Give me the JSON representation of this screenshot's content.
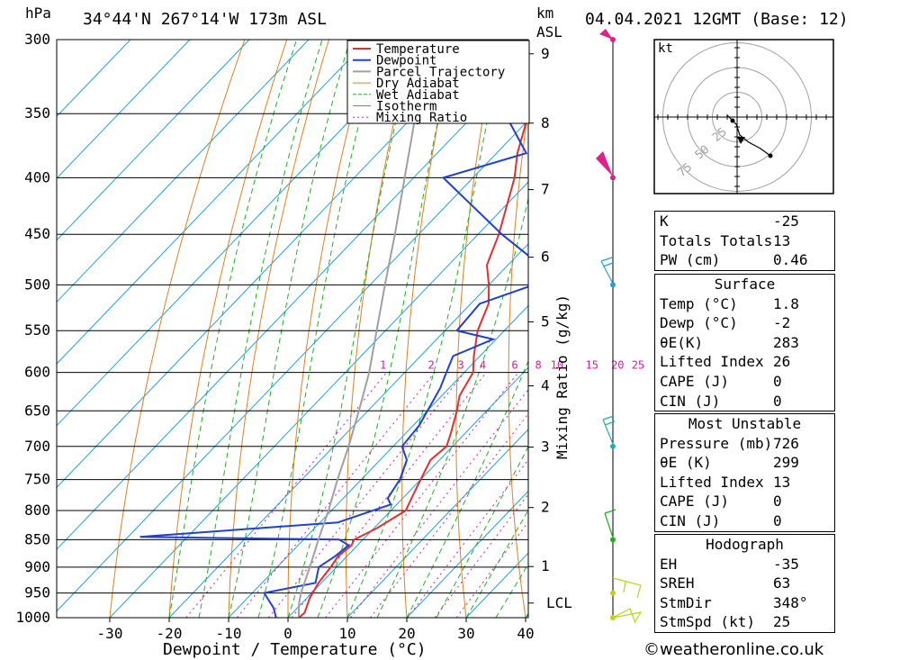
{
  "header": {
    "hpa_label": "hPa",
    "location": "34°44'N  267°14'W  173m  ASL",
    "km_label": "km",
    "asl_label": "ASL",
    "datetime": "04.04.2021  12GMT  (Base: 12)"
  },
  "colors": {
    "temperature": "#e03030",
    "dewpoint": "#2040d0",
    "parcel": "#a0a0a0",
    "dry_adiabat": "#e08020",
    "wet_adiabat": "#20b020",
    "isotherm": "#20a0e0",
    "mixing_ratio": "#d020a0"
  },
  "chart_data": {
    "type": "line",
    "title": "34°44'N 267°14'W 173m ASL",
    "xlabel": "Dewpoint / Temperature (°C)",
    "ylabel": "hPa",
    "secondary_ylabel": "Mixing Ratio (g/kg)",
    "xlim": [
      -40,
      40
    ],
    "ylim": [
      1000,
      300
    ],
    "x_ticks": [
      -30,
      -20,
      -10,
      0,
      10,
      20,
      30,
      40
    ],
    "pressure_levels": [
      300,
      350,
      400,
      450,
      500,
      550,
      600,
      650,
      700,
      750,
      800,
      850,
      900,
      950,
      1000
    ],
    "km_ticks": [
      {
        "km": "9",
        "p": 309
      },
      {
        "km": "8",
        "p": 357
      },
      {
        "km": "7",
        "p": 410
      },
      {
        "km": "6",
        "p": 472
      },
      {
        "km": "5",
        "p": 540
      },
      {
        "km": "4",
        "p": 617
      },
      {
        "km": "3",
        "p": 701
      },
      {
        "km": "2",
        "p": 795
      },
      {
        "km": "1",
        "p": 899
      },
      {
        "km": "LCL",
        "p": 970
      }
    ],
    "mixing_ratio_labels": [
      "1",
      "2",
      "3",
      "4",
      "6",
      "8",
      "10",
      "15",
      "20",
      "25"
    ],
    "legend": [
      "Temperature",
      "Dewpoint",
      "Parcel Trajectory",
      "Dry Adiabat",
      "Wet Adiabat",
      "Isotherm",
      "Mixing Ratio"
    ],
    "legend_position": "top-right",
    "series": [
      {
        "name": "Temperature",
        "points": [
          [
            1000,
            1.8
          ],
          [
            990,
            2.0
          ],
          [
            960,
            0.5
          ],
          [
            930,
            -0.5
          ],
          [
            900,
            -1.0
          ],
          [
            880,
            -1.5
          ],
          [
            860,
            -1.0
          ],
          [
            850,
            -1.5
          ],
          [
            830,
            0.5
          ],
          [
            800,
            2.5
          ],
          [
            780,
            1.5
          ],
          [
            750,
            0.0
          ],
          [
            720,
            -1.5
          ],
          [
            700,
            -1.0
          ],
          [
            680,
            -2.5
          ],
          [
            650,
            -5.0
          ],
          [
            630,
            -7.0
          ],
          [
            600,
            -8.5
          ],
          [
            580,
            -11.0
          ],
          [
            550,
            -14.5
          ],
          [
            520,
            -17.0
          ],
          [
            500,
            -20.0
          ],
          [
            480,
            -23.5
          ],
          [
            470,
            -24.5
          ],
          [
            450,
            -26.5
          ],
          [
            400,
            -33.0
          ],
          [
            380,
            -36.5
          ],
          [
            350,
            -41.0
          ],
          [
            320,
            -45.5
          ],
          [
            300,
            -49.5
          ]
        ]
      },
      {
        "name": "Dewpoint",
        "points": [
          [
            1000,
            -2.0
          ],
          [
            980,
            -4.0
          ],
          [
            950,
            -8.0
          ],
          [
            930,
            -1.0
          ],
          [
            900,
            -3.0
          ],
          [
            880,
            -2.0
          ],
          [
            860,
            -1.5
          ],
          [
            850,
            -4.0
          ],
          [
            845,
            -38.0
          ],
          [
            820,
            -7.0
          ],
          [
            790,
            -1.0
          ],
          [
            780,
            -2.5
          ],
          [
            750,
            -3.5
          ],
          [
            720,
            -5.5
          ],
          [
            700,
            -8.5
          ],
          [
            670,
            -9.0
          ],
          [
            620,
            -11.5
          ],
          [
            600,
            -13.0
          ],
          [
            580,
            -14.5
          ],
          [
            560,
            -10.5
          ],
          [
            550,
            -18.0
          ],
          [
            520,
            -18.5
          ],
          [
            500,
            -12.5
          ],
          [
            480,
            -14.5
          ],
          [
            450,
            -26.0
          ],
          [
            400,
            -45.0
          ],
          [
            380,
            -35.0
          ],
          [
            350,
            -45.0
          ],
          [
            320,
            -55.0
          ],
          [
            310,
            -58.0
          ],
          [
            300,
            -58.0
          ]
        ]
      },
      {
        "name": "Parcel Trajectory",
        "points": [
          [
            1000,
            1.8
          ],
          [
            970,
            -0.5
          ],
          [
            950,
            -1.8
          ],
          [
            900,
            -4.5
          ],
          [
            850,
            -7.5
          ],
          [
            800,
            -10.5
          ],
          [
            750,
            -14.0
          ],
          [
            700,
            -17.5
          ],
          [
            650,
            -21.5
          ],
          [
            600,
            -26.0
          ],
          [
            550,
            -31.5
          ],
          [
            500,
            -37.5
          ],
          [
            450,
            -44.0
          ],
          [
            400,
            -51.5
          ],
          [
            350,
            -60.0
          ],
          [
            300,
            -70.0
          ]
        ]
      }
    ]
  },
  "hodograph": {
    "unit_label": "kt",
    "ring_labels": [
      "25",
      "50",
      "75"
    ]
  },
  "indices": [
    {
      "label": "K",
      "value": "-25"
    },
    {
      "label": "Totals Totals",
      "value": "13"
    },
    {
      "label": "PW (cm)",
      "value": "0.46"
    }
  ],
  "surface": {
    "title": "Surface",
    "rows": [
      {
        "label": "Temp (°C)",
        "value": "1.8"
      },
      {
        "label": "Dewp (°C)",
        "value": "-2"
      },
      {
        "label": "θE(K)",
        "value": "283"
      },
      {
        "label": "Lifted Index",
        "value": "26"
      },
      {
        "label": "CAPE (J)",
        "value": "0"
      },
      {
        "label": "CIN (J)",
        "value": "0"
      }
    ]
  },
  "most_unstable": {
    "title": "Most Unstable",
    "rows": [
      {
        "label": "Pressure (mb)",
        "value": "726"
      },
      {
        "label": "θE (K)",
        "value": "299"
      },
      {
        "label": "Lifted Index",
        "value": "13"
      },
      {
        "label": "CAPE (J)",
        "value": "0"
      },
      {
        "label": "CIN (J)",
        "value": "0"
      }
    ]
  },
  "hodograph_stats": {
    "title": "Hodograph",
    "rows": [
      {
        "label": "EH",
        "value": "-35"
      },
      {
        "label": "SREH",
        "value": "63"
      },
      {
        "label": "StmDir",
        "value": "348°"
      },
      {
        "label": "StmSpd (kt)",
        "value": "25"
      }
    ]
  },
  "footer": {
    "copyright": "©weatheronline.co.uk"
  }
}
